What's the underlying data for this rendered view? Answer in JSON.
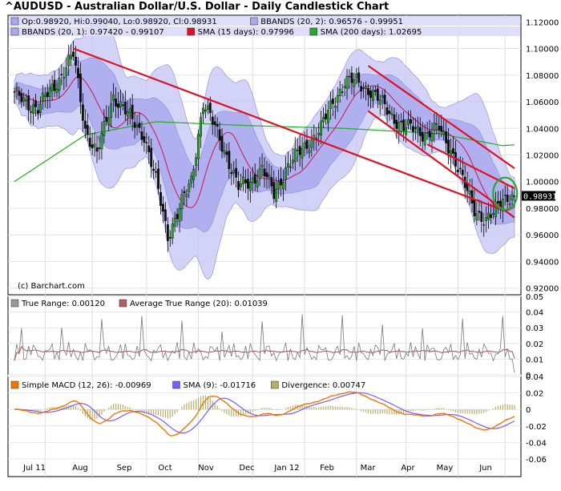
{
  "title": "^AUDUSD - Australian Dollar/U.S. Dollar - Daily Candlestick Chart",
  "credit": "(c) Barchart.com",
  "colors": {
    "panel_bg": "#ffffff",
    "band_outer": "#c8c8f6",
    "band_inner": "#a9a9ee",
    "band_edge": "#8a8ad8",
    "sma15": "#cc2255",
    "sma200": "#22aa22",
    "trendline": "#dd1122",
    "circle": "#22aa33",
    "candle_up": "#22aa22",
    "candle_down": "#111111",
    "tr_line": "#777777",
    "atr_line": "#b06060",
    "macd_line": "#ee7700",
    "macd_signal": "#7a5cff",
    "macd_hist": "#b5ad6a",
    "price_tag_bg": "#000000"
  },
  "legends": {
    "price_row1": [
      {
        "text": "Op:0.98920, Hi:0.99040, Lo:0.98920, Cl:0.98931",
        "swatch": "#a9a9ee"
      },
      {
        "text": "BBANDS (20, 2): 0.96576 - 0.99951",
        "swatch": "#a9a9ee"
      }
    ],
    "price_row2": [
      {
        "text": "BBANDS (20, 1): 0.97420 - 0.99107",
        "swatch": "#a9a9ee"
      },
      {
        "text": "SMA (15 days): 0.97996",
        "swatch": "#dd1122"
      },
      {
        "text": "SMA (200 days): 1.02695",
        "swatch": "#22aa22"
      }
    ],
    "tr_row": [
      {
        "text": "True Range: 0.00120",
        "swatch": "#999999"
      },
      {
        "text": "Average True Range (20): 0.01039",
        "swatch": "#b06060"
      }
    ],
    "macd_row": [
      {
        "text": "Simple MACD (12, 26): -0.00969",
        "swatch": "#ee7700"
      },
      {
        "text": "SMA (9): -0.01716",
        "swatch": "#7a5cff"
      },
      {
        "text": "Divergence: 0.00747",
        "swatch": "#b5ad6a"
      }
    ]
  },
  "last_price_label": "0.98931",
  "chart_data": [
    {
      "type": "candlestick",
      "panel": "price",
      "x_labels": [
        "Jul 11",
        "Aug",
        "Sep",
        "Oct",
        "Nov",
        "Dec",
        "Jan 12",
        "Feb",
        "Mar",
        "Apr",
        "May",
        "Jun"
      ],
      "y_ticks": [
        "0.92000",
        "0.94000",
        "0.96000",
        "0.98000",
        "1.00000",
        "1.02000",
        "1.04000",
        "1.06000",
        "1.08000",
        "1.10000",
        "1.12000"
      ],
      "ylim": [
        0.915,
        1.125
      ],
      "series_anchors": [
        {
          "index": 0,
          "close": 1.065
        },
        {
          "index": 10,
          "close": 1.055
        },
        {
          "index": 18,
          "close": 1.075
        },
        {
          "index": 25,
          "close": 1.095
        },
        {
          "index": 30,
          "close": 1.04
        },
        {
          "index": 35,
          "close": 1.02
        },
        {
          "index": 42,
          "close": 1.065
        },
        {
          "index": 48,
          "close": 1.05
        },
        {
          "index": 55,
          "close": 1.035
        },
        {
          "index": 60,
          "close": 1.0
        },
        {
          "index": 65,
          "close": 0.96
        },
        {
          "index": 70,
          "close": 0.98
        },
        {
          "index": 75,
          "close": 1.0
        },
        {
          "index": 80,
          "close": 1.06
        },
        {
          "index": 85,
          "close": 1.04
        },
        {
          "index": 90,
          "close": 1.02
        },
        {
          "index": 95,
          "close": 0.995
        },
        {
          "index": 100,
          "close": 1.0
        },
        {
          "index": 105,
          "close": 1.01
        },
        {
          "index": 110,
          "close": 0.99
        },
        {
          "index": 115,
          "close": 1.01
        },
        {
          "index": 120,
          "close": 1.02
        },
        {
          "index": 125,
          "close": 1.03
        },
        {
          "index": 130,
          "close": 1.04
        },
        {
          "index": 135,
          "close": 1.06
        },
        {
          "index": 140,
          "close": 1.075
        },
        {
          "index": 145,
          "close": 1.075
        },
        {
          "index": 150,
          "close": 1.07
        },
        {
          "index": 155,
          "close": 1.06
        },
        {
          "index": 160,
          "close": 1.05
        },
        {
          "index": 165,
          "close": 1.04
        },
        {
          "index": 170,
          "close": 1.04
        },
        {
          "index": 175,
          "close": 1.035
        },
        {
          "index": 180,
          "close": 1.04
        },
        {
          "index": 185,
          "close": 1.025
        },
        {
          "index": 190,
          "close": 1.0
        },
        {
          "index": 195,
          "close": 0.98
        },
        {
          "index": 200,
          "close": 0.97
        },
        {
          "index": 203,
          "close": 0.975
        },
        {
          "index": 207,
          "close": 0.989
        }
      ],
      "sma200": [
        {
          "index": 0,
          "value": 1.0
        },
        {
          "index": 30,
          "value": 1.035
        },
        {
          "index": 60,
          "value": 1.045
        },
        {
          "index": 100,
          "value": 1.042
        },
        {
          "index": 140,
          "value": 1.04
        },
        {
          "index": 180,
          "value": 1.036
        },
        {
          "index": 207,
          "value": 1.027
        }
      ],
      "trendlines": [
        {
          "from": [
            25,
            1.1
          ],
          "to": [
            205,
            0.98
          ]
        },
        {
          "from": [
            150,
            1.087
          ],
          "to": [
            212,
            1.01
          ]
        },
        {
          "from": [
            150,
            1.053
          ],
          "to": [
            212,
            0.973
          ]
        },
        {
          "from": [
            175,
            1.028
          ],
          "to": [
            212,
            0.995
          ]
        }
      ],
      "last_value": 0.98931
    },
    {
      "type": "line",
      "panel": "true_range",
      "y_ticks": [
        "0",
        "0.01",
        "0.02",
        "0.03",
        "0.04",
        "0.05"
      ],
      "ylim": [
        0,
        0.05
      ],
      "series": [
        {
          "name": "True Range",
          "last": 0.0012
        },
        {
          "name": "Average True Range (20)",
          "last": 0.01039
        }
      ]
    },
    {
      "type": "line",
      "panel": "macd",
      "y_ticks": [
        "-0.06",
        "-0.04",
        "-0.02",
        "0",
        "0.02",
        "0.04"
      ],
      "ylim": [
        -0.06,
        0.04
      ],
      "series": [
        {
          "name": "Simple MACD (12, 26)",
          "last": -0.00969
        },
        {
          "name": "SMA (9)",
          "last": -0.01716
        },
        {
          "name": "Divergence",
          "last": 0.00747
        }
      ]
    }
  ]
}
